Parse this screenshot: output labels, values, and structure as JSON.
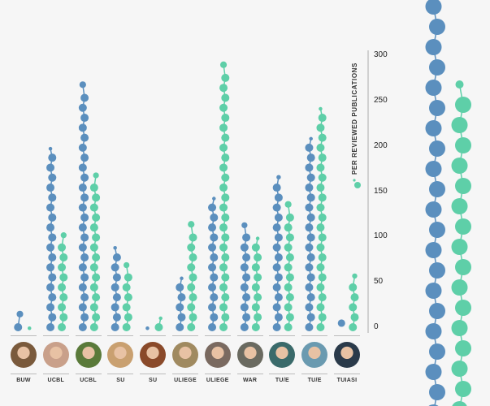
{
  "chart_data": {
    "type": "bar",
    "title": "",
    "ylabel": "PER REVIEWED PUBLICATIONS",
    "ylim": [
      0,
      300
    ],
    "yticks": [
      "0",
      "50",
      "100",
      "150",
      "200",
      "250",
      "300"
    ],
    "categories": [
      "BUW",
      "UCBL",
      "UCBL",
      "SU",
      "SU",
      "ULIEGE",
      "ULIEGE",
      "WAR",
      "TU/E",
      "TU/E",
      "TUIASI"
    ],
    "series": [
      {
        "name": "blue",
        "color": "#5b8fbe",
        "values": [
          20,
          200,
          273,
          93,
          4,
          58,
          144,
          118,
          171,
          210,
          10
        ]
      },
      {
        "name": "green",
        "color": "#5ecfa8",
        "values": [
          1,
          107,
          173,
          74,
          12,
          119,
          295,
          101,
          141,
          243,
          62
        ]
      }
    ],
    "avatar_colors": [
      "#7a5a3c",
      "#c9a08a",
      "#5a7a3a",
      "#c9a070",
      "#8a4a2a",
      "#a08a60",
      "#7a6a60",
      "#6a6a60",
      "#3a6a6a",
      "#6a9ab0",
      "#2a3a4a"
    ]
  }
}
